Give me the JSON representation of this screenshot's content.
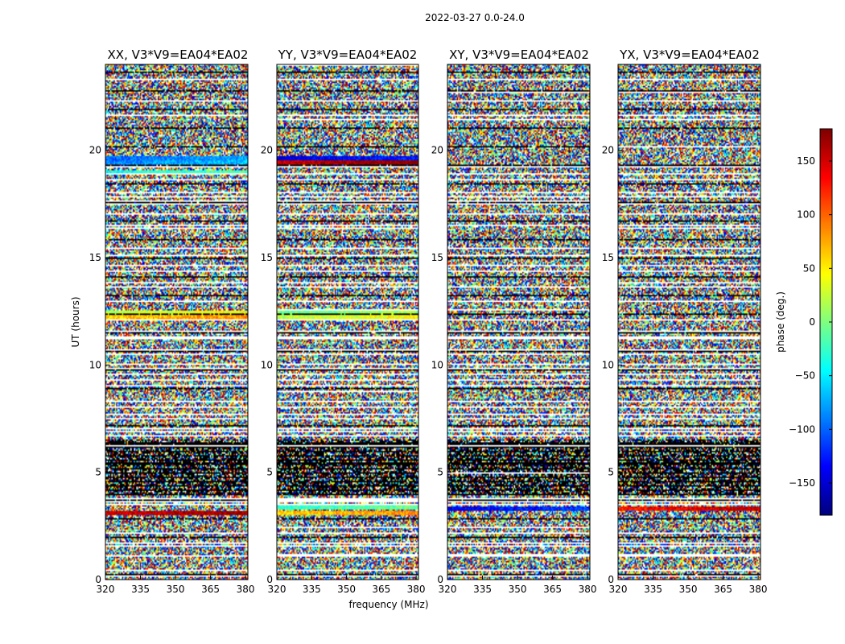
{
  "figure": {
    "suptitle": "2022-03-27 0.0-24.0",
    "xlabel": "frequency (MHz)",
    "ylabel": "UT (hours)",
    "colorbar_label": "phase (deg.)"
  },
  "chart_data": {
    "type": "heatmap",
    "colormap": "jet",
    "vrange": [
      -180,
      180
    ],
    "xlim": [
      320,
      381
    ],
    "ylim": [
      0,
      24
    ],
    "xticks": [
      320,
      335,
      350,
      365,
      380
    ],
    "yticks": [
      0,
      5,
      10,
      15,
      20
    ],
    "colorbar_ticks": [
      -150,
      -100,
      -50,
      0,
      50,
      100,
      150
    ],
    "colorbar_tick_labels": [
      "−150",
      "−100",
      "−50",
      "0",
      "50",
      "100",
      "150"
    ],
    "flagged_rows_ut": [
      0.2,
      0.45,
      1.15,
      1.6,
      1.75,
      2.2,
      3.55,
      3.7,
      3.8,
      6.75,
      6.95,
      7.05,
      7.75,
      8.1,
      8.35,
      9.05,
      9.3,
      9.6,
      9.85,
      10.1,
      10.55,
      10.75,
      11.3,
      11.6,
      12.15,
      13.0,
      13.65,
      14.4,
      14.7,
      15.15,
      15.5,
      16.55,
      17.05,
      17.55,
      17.85,
      18.05,
      18.7,
      18.95,
      19.25,
      21.7,
      22.3,
      23.35
    ],
    "dark_band_ut": [
      3.9,
      6.5
    ],
    "panels": [
      {
        "title": "XX, V3*V9=EA04*EA02",
        "coherent_rows": [
          {
            "ut": 3.1,
            "phase": 150
          },
          {
            "ut": 12.25,
            "phase": 60
          },
          {
            "ut": 12.45,
            "phase": 20
          },
          {
            "ut": 19.45,
            "phase": -90
          },
          {
            "ut": 19.65,
            "phase": -100
          },
          {
            "ut": 19.0,
            "phase": -40
          }
        ]
      },
      {
        "title": "YY, V3*V9=EA04*EA02",
        "coherent_rows": [
          {
            "ut": 3.1,
            "phase": 60
          },
          {
            "ut": 3.35,
            "phase": -30
          },
          {
            "ut": 12.25,
            "phase": 20
          },
          {
            "ut": 12.45,
            "phase": -10
          },
          {
            "ut": 19.45,
            "phase": 160
          },
          {
            "ut": 19.65,
            "phase": -150
          }
        ]
      },
      {
        "title": "XY, V3*V9=EA04*EA02",
        "coherent_rows": [
          {
            "ut": 3.3,
            "phase": -140
          }
        ]
      },
      {
        "title": "YX, V3*V9=EA04*EA02",
        "coherent_rows": [
          {
            "ut": 3.3,
            "phase": 130
          }
        ]
      }
    ]
  }
}
